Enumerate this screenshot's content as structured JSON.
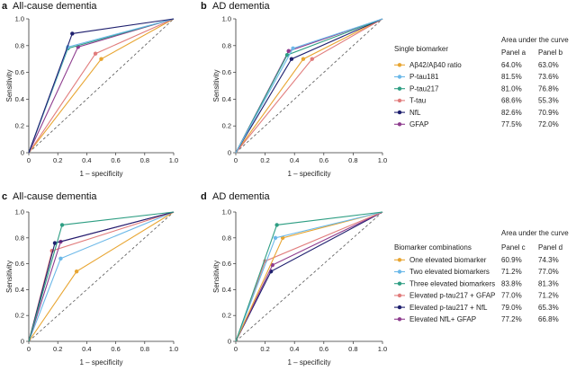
{
  "colors": {
    "ab42": "#E8A531",
    "ptau181": "#6BB8E8",
    "ptau217": "#2E9E83",
    "ttau": "#E17C7C",
    "nfl": "#1E1F6E",
    "gfap": "#8E3C8E",
    "one": "#E8A531",
    "two": "#6BB8E8",
    "three": "#2E9E83",
    "p217gfap": "#E17C7C",
    "p217nfl": "#1E1F6E",
    "nflgfap": "#8E3C8E"
  },
  "legends": [
    {
      "heading": "Single biomarker",
      "area_title": "Area under the curve",
      "col1": "Panel a",
      "col2": "Panel b",
      "items": [
        {
          "label": "Aβ42/Aβ40 ratio",
          "v1": "64.0%",
          "v2": "63.0%",
          "color": "#E8A531"
        },
        {
          "label": "P-tau181",
          "v1": "81.5%",
          "v2": "73.6%",
          "color": "#6BB8E8"
        },
        {
          "label": "P-tau217",
          "v1": "81.0%",
          "v2": "76.8%",
          "color": "#2E9E83"
        },
        {
          "label": "T-tau",
          "v1": "68.6%",
          "v2": "55.3%",
          "color": "#E17C7C"
        },
        {
          "label": "NfL",
          "v1": "82.6%",
          "v2": "70.9%",
          "color": "#1E1F6E"
        },
        {
          "label": "GFAP",
          "v1": "77.5%",
          "v2": "72.0%",
          "color": "#8E3C8E"
        }
      ]
    },
    {
      "heading": "Biomarker combinations",
      "area_title": "Area under the curve",
      "col1": "Panel c",
      "col2": "Panel d",
      "items": [
        {
          "label": "One elevated biomarker",
          "v1": "60.9%",
          "v2": "74.3%",
          "color": "#E8A531"
        },
        {
          "label": "Two elevated biomarkers",
          "v1": "71.2%",
          "v2": "77.0%",
          "color": "#6BB8E8"
        },
        {
          "label": "Three elevated biomarkers",
          "v1": "83.8%",
          "v2": "81.3%",
          "color": "#2E9E83"
        },
        {
          "label": "Elevated p-tau217 + GFAP",
          "v1": "77.0%",
          "v2": "71.2%",
          "color": "#E17C7C"
        },
        {
          "label": "Elevated p-tau217 + NfL",
          "v1": "79.0%",
          "v2": "65.3%",
          "color": "#1E1F6E"
        },
        {
          "label": "Elevated NfL+ GFAP",
          "v1": "77.2%",
          "v2": "66.8%",
          "color": "#8E3C8E"
        }
      ]
    }
  ],
  "chart_data": [
    {
      "panel": "a",
      "type": "line",
      "title": "All-cause dementia",
      "xlabel": "1 – specificity",
      "ylabel": "Sensitivity",
      "xlim": [
        0,
        1
      ],
      "ylim": [
        0,
        1
      ],
      "ticks": [
        "0",
        "0.2",
        "0.4",
        "0.6",
        "0.8",
        "1.0"
      ],
      "diagonal": true,
      "series": [
        {
          "name": "Aβ42/Aβ40 ratio",
          "color": "#E8A531",
          "points": [
            [
              0,
              0
            ],
            [
              0.5,
              0.7
            ],
            [
              1,
              1
            ]
          ]
        },
        {
          "name": "T-tau",
          "color": "#E17C7C",
          "points": [
            [
              0,
              0
            ],
            [
              0.46,
              0.74
            ],
            [
              1,
              1
            ]
          ]
        },
        {
          "name": "GFAP",
          "color": "#8E3C8E",
          "points": [
            [
              0,
              0
            ],
            [
              0.34,
              0.79
            ],
            [
              1,
              1
            ]
          ]
        },
        {
          "name": "P-tau217",
          "color": "#2E9E83",
          "points": [
            [
              0,
              0
            ],
            [
              0.27,
              0.78
            ],
            [
              1,
              1
            ]
          ]
        },
        {
          "name": "P-tau181",
          "color": "#6BB8E8",
          "points": [
            [
              0,
              0
            ],
            [
              0.27,
              0.79
            ],
            [
              1,
              1
            ]
          ]
        },
        {
          "name": "NfL",
          "color": "#1E1F6E",
          "points": [
            [
              0,
              0
            ],
            [
              0.3,
              0.89
            ],
            [
              1,
              1
            ]
          ]
        }
      ]
    },
    {
      "panel": "b",
      "type": "line",
      "title": "AD dementia",
      "xlabel": "1 – specificity",
      "ylabel": "Sensitivity",
      "xlim": [
        0,
        1
      ],
      "ylim": [
        0,
        1
      ],
      "ticks": [
        "0",
        "0.2",
        "0.4",
        "0.6",
        "0.8",
        "1.0"
      ],
      "diagonal": true,
      "series": [
        {
          "name": "Aβ42/Aβ40 ratio",
          "color": "#E8A531",
          "points": [
            [
              0,
              0
            ],
            [
              0.46,
              0.7
            ],
            [
              1,
              1
            ]
          ]
        },
        {
          "name": "T-tau",
          "color": "#E17C7C",
          "points": [
            [
              0,
              0
            ],
            [
              0.52,
              0.7
            ],
            [
              1,
              1
            ]
          ]
        },
        {
          "name": "NfL",
          "color": "#1E1F6E",
          "points": [
            [
              0,
              0
            ],
            [
              0.38,
              0.7
            ],
            [
              1,
              1
            ]
          ]
        },
        {
          "name": "GFAP",
          "color": "#8E3C8E",
          "points": [
            [
              0,
              0
            ],
            [
              0.36,
              0.76
            ],
            [
              1,
              1
            ]
          ]
        },
        {
          "name": "P-tau217",
          "color": "#2E9E83",
          "points": [
            [
              0,
              0
            ],
            [
              0.35,
              0.73
            ],
            [
              1,
              1
            ]
          ]
        },
        {
          "name": "P-tau181",
          "color": "#6BB8E8",
          "points": [
            [
              0,
              0
            ],
            [
              0.39,
              0.78
            ],
            [
              1,
              1
            ]
          ]
        }
      ]
    },
    {
      "panel": "c",
      "type": "line",
      "title": "All-cause dementia",
      "xlabel": "1 – specificity",
      "ylabel": "Sensitivity",
      "xlim": [
        0,
        1
      ],
      "ylim": [
        0,
        1
      ],
      "ticks": [
        "0",
        "0.2",
        "0.4",
        "0.6",
        "0.8",
        "1.0"
      ],
      "diagonal": true,
      "series": [
        {
          "name": "One elevated biomarker",
          "color": "#E8A531",
          "points": [
            [
              0,
              0
            ],
            [
              0.33,
              0.54
            ],
            [
              1,
              1
            ]
          ]
        },
        {
          "name": "Two elevated biomarkers",
          "color": "#6BB8E8",
          "points": [
            [
              0,
              0
            ],
            [
              0.22,
              0.64
            ],
            [
              1,
              1
            ]
          ]
        },
        {
          "name": "Elevated p-tau217 + GFAP",
          "color": "#E17C7C",
          "points": [
            [
              0,
              0
            ],
            [
              0.16,
              0.7
            ],
            [
              1,
              1
            ]
          ]
        },
        {
          "name": "Elevated NfL+ GFAP",
          "color": "#8E3C8E",
          "points": [
            [
              0,
              0
            ],
            [
              0.22,
              0.77
            ],
            [
              1,
              1
            ]
          ]
        },
        {
          "name": "Elevated p-tau217 + NfL",
          "color": "#1E1F6E",
          "points": [
            [
              0,
              0
            ],
            [
              0.18,
              0.76
            ],
            [
              1,
              1
            ]
          ]
        },
        {
          "name": "Three elevated biomarkers",
          "color": "#2E9E83",
          "points": [
            [
              0,
              0
            ],
            [
              0.23,
              0.9
            ],
            [
              1,
              1
            ]
          ]
        }
      ]
    },
    {
      "panel": "d",
      "type": "line",
      "title": "AD dementia",
      "xlabel": "1 – specificity",
      "ylabel": "Sensitivity",
      "xlim": [
        0,
        1
      ],
      "ylim": [
        0,
        1
      ],
      "ticks": [
        "0",
        "0.2",
        "0.4",
        "0.6",
        "0.8",
        "1.0"
      ],
      "diagonal": true,
      "series": [
        {
          "name": "Elevated p-tau217 + NfL",
          "color": "#1E1F6E",
          "points": [
            [
              0,
              0
            ],
            [
              0.24,
              0.54
            ],
            [
              1,
              1
            ]
          ]
        },
        {
          "name": "Elevated NfL+ GFAP",
          "color": "#8E3C8E",
          "points": [
            [
              0,
              0
            ],
            [
              0.25,
              0.59
            ],
            [
              1,
              1
            ]
          ]
        },
        {
          "name": "Elevated p-tau217 + GFAP",
          "color": "#E17C7C",
          "points": [
            [
              0,
              0
            ],
            [
              0.2,
              0.62
            ],
            [
              1,
              1
            ]
          ]
        },
        {
          "name": "One elevated biomarker",
          "color": "#E8A531",
          "points": [
            [
              0,
              0
            ],
            [
              0.32,
              0.8
            ],
            [
              1,
              1
            ]
          ]
        },
        {
          "name": "Two elevated biomarkers",
          "color": "#6BB8E8",
          "points": [
            [
              0,
              0
            ],
            [
              0.27,
              0.8
            ],
            [
              1,
              1
            ]
          ]
        },
        {
          "name": "Three elevated biomarkers",
          "color": "#2E9E83",
          "points": [
            [
              0,
              0
            ],
            [
              0.28,
              0.9
            ],
            [
              1,
              1
            ]
          ]
        }
      ]
    }
  ]
}
